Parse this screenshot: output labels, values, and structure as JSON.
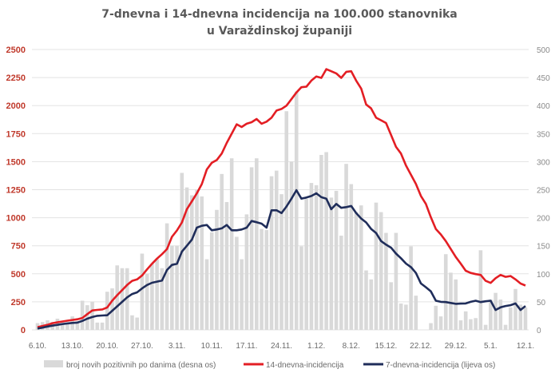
{
  "chart_data": {
    "type": "bar+line",
    "title": [
      "7-dnevna i 14-dnevna incidencija na 100.000 stanovnika",
      "u Varaždinskoj županiji"
    ],
    "grid": true,
    "legend_position": "bottom",
    "left_axis": {
      "ylim": [
        0,
        2500
      ],
      "ticks": [
        0,
        250,
        500,
        750,
        1000,
        1250,
        1500,
        1750,
        2000,
        2250,
        2500
      ],
      "color": "#c0392b"
    },
    "right_axis": {
      "ylim": [
        0,
        500
      ],
      "ticks": [
        0,
        50,
        100,
        150,
        200,
        250,
        300,
        350,
        400,
        450,
        500
      ]
    },
    "x_tick_labels": [
      "6.10.",
      "13.10.",
      "20.10.",
      "27.10.",
      "3.11.",
      "10.11.",
      "17.11.",
      "24.11.",
      "1.12.",
      "8.12.",
      "15.12.",
      "22.12.",
      "29.12.",
      "5.1.",
      "12.1."
    ],
    "dates": [
      "6.10.",
      "7.10.",
      "8.10.",
      "9.10.",
      "10.10.",
      "11.10.",
      "12.10.",
      "13.10.",
      "14.10.",
      "15.10.",
      "16.10.",
      "17.10.",
      "18.10.",
      "19.10.",
      "20.10.",
      "21.10.",
      "22.10.",
      "23.10.",
      "24.10.",
      "25.10.",
      "26.10.",
      "27.10.",
      "28.10.",
      "29.10.",
      "30.10.",
      "31.10.",
      "1.11.",
      "2.11.",
      "3.11.",
      "4.11.",
      "5.11.",
      "6.11.",
      "7.11.",
      "8.11.",
      "9.11.",
      "10.11.",
      "11.11.",
      "12.11.",
      "13.11.",
      "14.11.",
      "15.11.",
      "16.11.",
      "17.11.",
      "18.11.",
      "19.11.",
      "20.11.",
      "21.11.",
      "22.11.",
      "23.11.",
      "24.11.",
      "25.11.",
      "26.11.",
      "27.11.",
      "28.11.",
      "29.11.",
      "30.11.",
      "1.12.",
      "2.12.",
      "3.12.",
      "4.12.",
      "5.12.",
      "6.12.",
      "7.12.",
      "8.12.",
      "9.12.",
      "10.12.",
      "11.12.",
      "12.12.",
      "13.12.",
      "14.12.",
      "15.12.",
      "16.12.",
      "17.12.",
      "18.12.",
      "19.12.",
      "20.12.",
      "21.12.",
      "22.12.",
      "23.12.",
      "24.12.",
      "25.12.",
      "26.12.",
      "27.12.",
      "28.12.",
      "29.12.",
      "30.12.",
      "31.12.",
      "1.1.",
      "2.1.",
      "3.1.",
      "4.1.",
      "5.1.",
      "6.1.",
      "7.1.",
      "8.1.",
      "9.1.",
      "10.1.",
      "11.1.",
      "12.1."
    ],
    "series": [
      {
        "name": "broj novih pozitivnih po danima (desna os)",
        "type": "bar",
        "axis": "right",
        "color": "#d9d9d9",
        "values": [
          12,
          14,
          17,
          14,
          20,
          12,
          12,
          24,
          16,
          52,
          44,
          50,
          13,
          13,
          68,
          74,
          115,
          110,
          110,
          26,
          22,
          136,
          100,
          118,
          126,
          110,
          190,
          150,
          150,
          280,
          254,
          240,
          250,
          238,
          126,
          174,
          214,
          278,
          228,
          306,
          166,
          126,
          206,
          290,
          306,
          180,
          178,
          274,
          284,
          242,
          390,
          300,
          425,
          149,
          234,
          262,
          258,
          312,
          317,
          236,
          248,
          168,
          296,
          260,
          210,
          222,
          106,
          90,
          227,
          210,
          173,
          85,
          173,
          47,
          45,
          149,
          61,
          0,
          0,
          12,
          43,
          24,
          135,
          102,
          90,
          17,
          33,
          19,
          21,
          142,
          9,
          54,
          66,
          54,
          9,
          40,
          73,
          45,
          40
        ]
      },
      {
        "name": "14-dnevna-incidencija",
        "type": "line",
        "axis": "left",
        "color": "#e31e24",
        "values": [
          24,
          35,
          45,
          60,
          68,
          75,
          82,
          88,
          95,
          106,
          140,
          173,
          178,
          182,
          200,
          260,
          310,
          355,
          400,
          437,
          450,
          485,
          540,
          590,
          635,
          675,
          720,
          830,
          887,
          958,
          1076,
          1147,
          1218,
          1300,
          1431,
          1490,
          1514,
          1573,
          1667,
          1750,
          1833,
          1809,
          1838,
          1852,
          1880,
          1838,
          1857,
          1892,
          1956,
          1970,
          1999,
          2058,
          2117,
          2164,
          2169,
          2223,
          2259,
          2247,
          2325,
          2306,
          2287,
          2247,
          2301,
          2306,
          2223,
          2152,
          2010,
          1975,
          1892,
          1869,
          1845,
          1738,
          1632,
          1573,
          1466,
          1384,
          1301,
          1194,
          1123,
          1005,
          899,
          851,
          792,
          721,
          650,
          591,
          527,
          508,
          497,
          490,
          437,
          419,
          461,
          490,
          473,
          480,
          450,
          414,
          395
        ]
      },
      {
        "name": "7-dnevna-incidencija (lijeva os)",
        "type": "line",
        "axis": "left",
        "color": "#1f2d5a",
        "values": [
          12,
          20,
          30,
          38,
          45,
          52,
          58,
          62,
          65,
          80,
          100,
          115,
          125,
          128,
          130,
          170,
          210,
          250,
          290,
          320,
          335,
          370,
          400,
          420,
          430,
          440,
          534,
          579,
          590,
          698,
          750,
          805,
          912,
          928,
          935,
          888,
          895,
          905,
          935,
          888,
          888,
          895,
          912,
          971,
          960,
          947,
          912,
          1066,
          1066,
          1041,
          1100,
          1170,
          1246,
          1170,
          1180,
          1194,
          1218,
          1183,
          1170,
          1076,
          1123,
          1088,
          1095,
          1105,
          1041,
          993,
          958,
          900,
          863,
          792,
          760,
          733,
          680,
          639,
          591,
          560,
          508,
          414,
          380,
          343,
          260,
          250,
          248,
          240,
          232,
          234,
          236,
          250,
          260,
          248,
          255,
          260,
          177,
          201,
          213,
          220,
          236,
          177,
          213
        ]
      }
    ]
  }
}
